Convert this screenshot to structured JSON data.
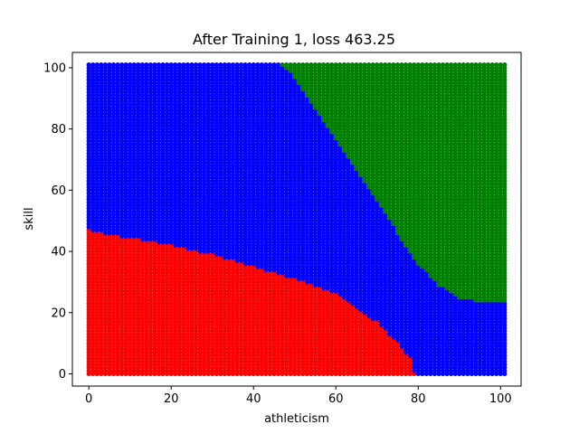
{
  "chart_data": {
    "type": "scatter",
    "title": "After Training 1, loss 463.25",
    "xlabel": "athleticism",
    "ylabel": "skill",
    "xlim": [
      -4,
      105
    ],
    "ylim": [
      -4,
      105
    ],
    "xticks": [
      0,
      20,
      40,
      60,
      80,
      100
    ],
    "yticks": [
      0,
      20,
      40,
      60,
      80,
      100
    ],
    "grid": false,
    "legend": "none",
    "grid_range": [
      0,
      101
    ],
    "series": [
      {
        "color": "#ff0000",
        "region": "lower-left",
        "boundary": [
          [
            0,
            47
          ],
          [
            5,
            45.5
          ],
          [
            10,
            44.5
          ],
          [
            20,
            42
          ],
          [
            30,
            39
          ],
          [
            40,
            35
          ],
          [
            50,
            31
          ],
          [
            60,
            26
          ],
          [
            70,
            17
          ],
          [
            75,
            10
          ],
          [
            78,
            5
          ],
          [
            79,
            0
          ]
        ]
      },
      {
        "color": "#0000ff",
        "region": "between"
      },
      {
        "color": "#008000",
        "region": "upper-right",
        "boundary": [
          [
            47,
            101
          ],
          [
            50,
            97
          ],
          [
            55,
            87
          ],
          [
            60,
            77
          ],
          [
            65,
            67
          ],
          [
            70,
            57
          ],
          [
            75,
            46
          ],
          [
            80,
            36
          ],
          [
            85,
            29
          ],
          [
            90,
            25
          ],
          [
            95,
            23.5
          ],
          [
            101,
            24
          ]
        ]
      }
    ]
  }
}
